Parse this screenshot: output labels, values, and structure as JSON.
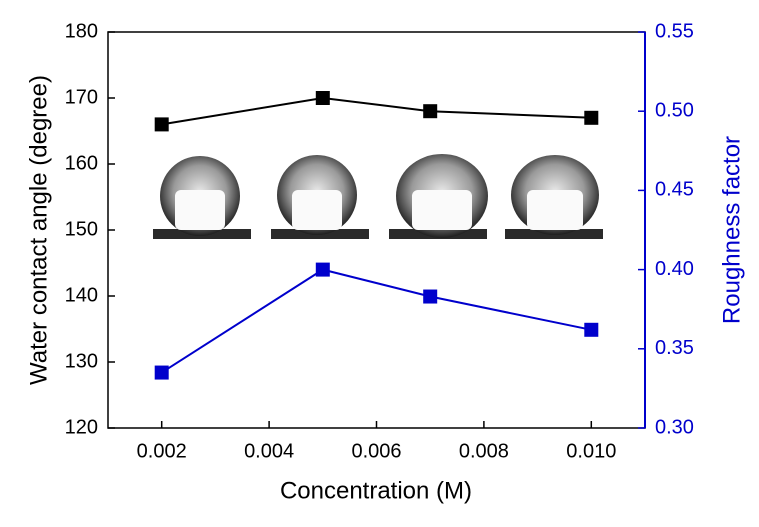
{
  "chart_data": {
    "type": "line",
    "xlabel": "Concentration (M)",
    "ylabel": "Water contact angle (degree)",
    "y2label": "Roughness factor",
    "x": [
      0.002,
      0.005,
      0.007,
      0.01
    ],
    "series": [
      {
        "color": "#000000",
        "values": [
          166,
          170,
          168,
          167
        ]
      },
      {
        "color": "#0000cc",
        "axis": "y2",
        "values": [
          0.335,
          0.4,
          0.383,
          0.362
        ]
      }
    ],
    "xlim": [
      0.001,
      0.011
    ],
    "xticks": [
      0.002,
      0.004,
      0.006,
      0.008,
      {
        "value": 0.01,
        "label": "0.010"
      }
    ],
    "ylim": [
      120,
      180
    ],
    "yticks": [
      120,
      130,
      140,
      150,
      160,
      170,
      180
    ],
    "y2lim": [
      0.3,
      0.55
    ],
    "y2ticks": [
      {
        "value": 0.3,
        "label": "0.30"
      },
      0.35,
      {
        "value": 0.4,
        "label": "0.40"
      },
      0.45,
      {
        "value": 0.5,
        "label": "0.50"
      },
      0.55
    ],
    "y2color": "#0000cc"
  }
}
